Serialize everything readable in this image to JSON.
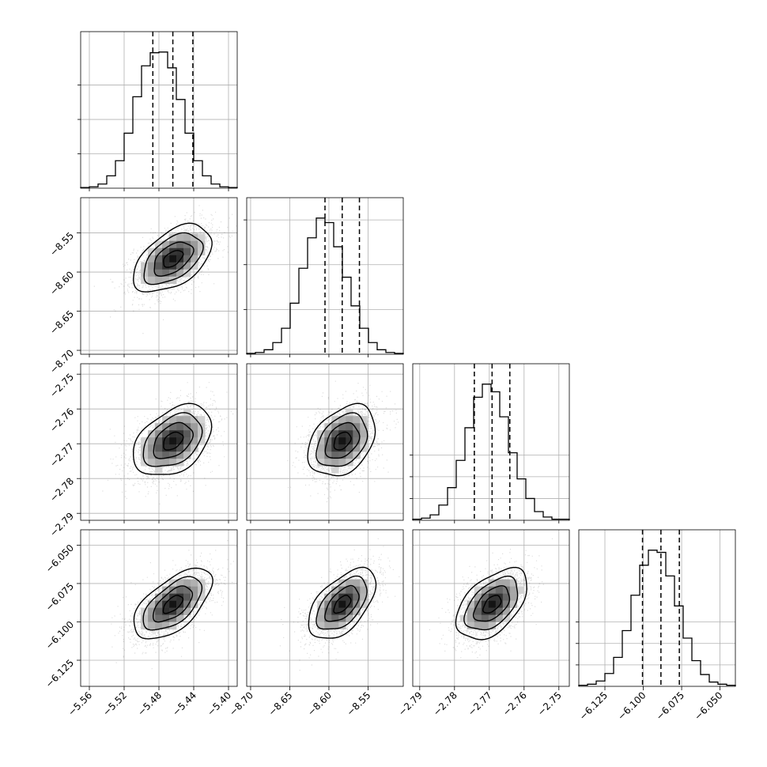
{
  "chart_data": {
    "type": "corner",
    "parameters": [
      {
        "index": 0,
        "ticks": [
          -5.56,
          -5.52,
          -5.48,
          -5.44,
          -5.4
        ],
        "tick_labels": [
          "−5.56",
          "−5.52",
          "−5.48",
          "−5.44",
          "−5.40"
        ],
        "range": [
          -5.57,
          -5.39
        ],
        "mean": -5.464,
        "sd": 0.0225,
        "quantiles": [
          -5.487,
          -5.464,
          -5.441
        ]
      },
      {
        "index": 1,
        "ticks": [
          -8.7,
          -8.65,
          -8.6,
          -8.55
        ],
        "tick_labels": [
          "−8.70",
          "−8.65",
          "−8.60",
          "−8.55"
        ],
        "range": [
          -8.705,
          -8.505
        ],
        "mean": -8.583,
        "sd": 0.0215,
        "quantiles": [
          -8.605,
          -8.583,
          -8.561
        ]
      },
      {
        "index": 2,
        "ticks": [
          -2.79,
          -2.78,
          -2.77,
          -2.76,
          -2.75
        ],
        "tick_labels": [
          "−2.79",
          "−2.78",
          "−2.77",
          "−2.76",
          "−2.75"
        ],
        "range": [
          -2.792,
          -2.747
        ],
        "mean": -2.7692,
        "sd": 0.0051,
        "quantiles": [
          -2.7743,
          -2.7692,
          -2.7641
        ]
      },
      {
        "index": 3,
        "ticks": [
          -6.125,
          -6.1,
          -6.075,
          -6.05
        ],
        "tick_labels": [
          "−6.125",
          "−6.100",
          "−6.075",
          "−6.050"
        ],
        "range": [
          -6.142,
          -6.04
        ],
        "mean": -6.0885,
        "sd": 0.0115,
        "quantiles": [
          -6.1005,
          -6.0885,
          -6.0765
        ]
      }
    ],
    "correlations": [
      [
        0,
        1,
        0.5
      ],
      [
        0,
        2,
        0.4
      ],
      [
        1,
        2,
        0.35
      ],
      [
        0,
        3,
        0.6
      ],
      [
        1,
        3,
        0.55
      ],
      [
        2,
        3,
        0.5
      ]
    ],
    "histograms": [
      {
        "param": 0,
        "counts": [
          1,
          2,
          6,
          18,
          40,
          80,
          133,
          178,
          197,
          198,
          175,
          129,
          80,
          40,
          18,
          6,
          2,
          1
        ]
      },
      {
        "param": 1,
        "counts": [
          1,
          2,
          5,
          13,
          29,
          57,
          96,
          130,
          152,
          147,
          120,
          86,
          54,
          29,
          13,
          5,
          2,
          1
        ]
      },
      {
        "param": 2,
        "counts": [
          1,
          2,
          5,
          14,
          30,
          55,
          85,
          113,
          125,
          118,
          95,
          62,
          38,
          20,
          8,
          3,
          1,
          1
        ]
      },
      {
        "param": 3,
        "counts": [
          1,
          2,
          5,
          12,
          27,
          52,
          85,
          113,
          127,
          125,
          103,
          75,
          45,
          24,
          11,
          4,
          2,
          1
        ]
      }
    ],
    "contour_levels_sigma": [
      0.5,
      1.0,
      1.5,
      2.0
    ],
    "grid": true,
    "xlabel": "",
    "ylabel": "",
    "title": ""
  }
}
